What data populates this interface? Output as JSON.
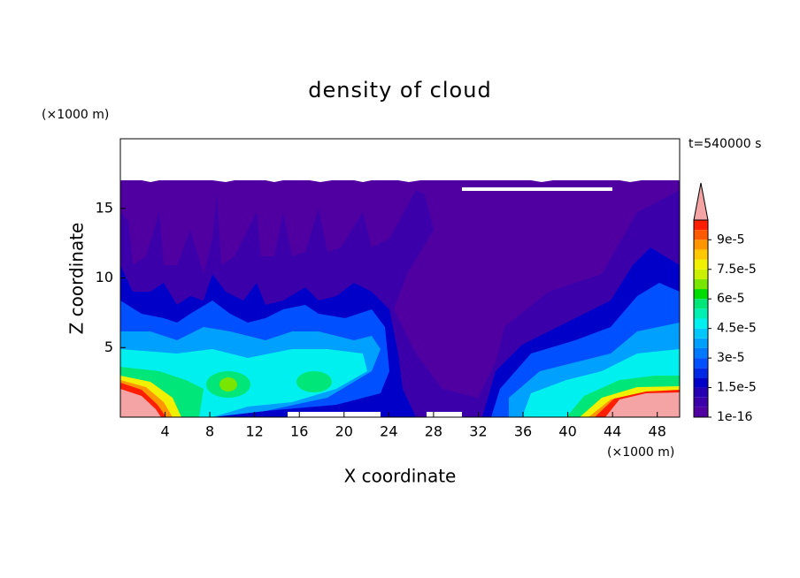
{
  "chart_data": {
    "type": "contour",
    "title": "density of cloud",
    "x_label": "X coordinate",
    "y_label": "Z coordinate",
    "x_unit": "(×1000 m)",
    "y_unit": "(×1000 m)",
    "time_label": "t=540000 s",
    "xlim": [
      0,
      50
    ],
    "ylim": [
      0,
      20
    ],
    "xticks": [
      4,
      8,
      12,
      16,
      20,
      24,
      28,
      32,
      36,
      40,
      44,
      48
    ],
    "yticks": [
      5,
      10,
      15
    ],
    "levels": [
      1e-16,
      5e-06,
      1e-05,
      1.5e-05,
      2e-05,
      2.5e-05,
      3e-05,
      3.5e-05,
      4e-05,
      4.5e-05,
      5e-05,
      5.5e-05,
      6e-05,
      6.5e-05,
      7e-05,
      7.5e-05,
      8e-05,
      8.5e-05,
      9e-05,
      9.5e-05,
      0.0001
    ],
    "colors": [
      "#5000a0",
      "#3c00aa",
      "#2800b4",
      "#0000c8",
      "#0028e6",
      "#0050ff",
      "#0078ff",
      "#00a0ff",
      "#00c8ff",
      "#00f0f0",
      "#00f0b4",
      "#00e678",
      "#00dc00",
      "#78e600",
      "#c8f000",
      "#f0f000",
      "#ffc800",
      "#ff9600",
      "#ff5a00",
      "#ff1e00"
    ],
    "extend_color": "#f4a4a4",
    "colorbar_ticks": [
      {
        "value": 1e-16,
        "label": "1e-16"
      },
      {
        "value": 1.5e-05,
        "label": "1.5e-5"
      },
      {
        "value": 3e-05,
        "label": "3e-5"
      },
      {
        "value": 4.5e-05,
        "label": "4.5e-5"
      },
      {
        "value": 6e-05,
        "label": "6e-5"
      },
      {
        "value": 7.5e-05,
        "label": "7.5e-5"
      },
      {
        "value": 9e-05,
        "label": "9e-5"
      }
    ]
  }
}
